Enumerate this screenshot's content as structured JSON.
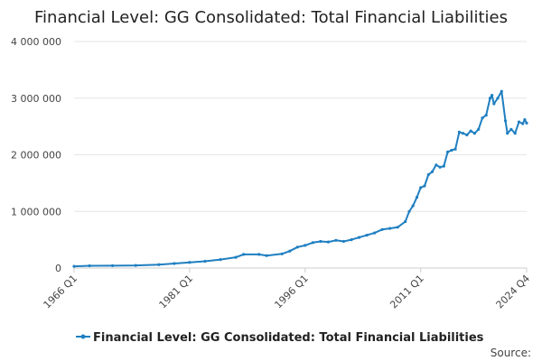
{
  "chart_data": {
    "type": "line",
    "title": "Financial Level: GG Consolidated: Total Financial Liabilities",
    "xlabel": "",
    "ylabel": "",
    "x_range": [
      "1966 Q1",
      "2024 Q4"
    ],
    "x_tick_labels": [
      "1966 Q1",
      "1981 Q1",
      "1996 Q1",
      "2011 Q1",
      "2024 Q4"
    ],
    "ylim": [
      0,
      4000000
    ],
    "y_tick_values": [
      0,
      1000000,
      2000000,
      3000000,
      4000000
    ],
    "y_tick_labels": [
      "0",
      "1 000 000",
      "2 000 000",
      "3 000 000",
      "4 000 000"
    ],
    "grid": true,
    "legend_position": "bottom",
    "series": [
      {
        "name": "Financial Level: GG Consolidated: Total Financial Liabilities",
        "color": "#1f7fc1",
        "points": [
          [
            "1966 Q1",
            30000
          ],
          [
            "1968 Q1",
            40000
          ],
          [
            "1971 Q1",
            42000
          ],
          [
            "1974 Q1",
            46000
          ],
          [
            "1977 Q1",
            60000
          ],
          [
            "1979 Q1",
            80000
          ],
          [
            "1981 Q1",
            100000
          ],
          [
            "1983 Q1",
            120000
          ],
          [
            "1985 Q1",
            150000
          ],
          [
            "1987 Q1",
            190000
          ],
          [
            "1988 Q1",
            240000
          ],
          [
            "1990 Q1",
            240000
          ],
          [
            "1991 Q1",
            220000
          ],
          [
            "1993 Q1",
            250000
          ],
          [
            "1994 Q1",
            300000
          ],
          [
            "1995 Q1",
            370000
          ],
          [
            "1996 Q1",
            400000
          ],
          [
            "1997 Q1",
            450000
          ],
          [
            "1998 Q1",
            470000
          ],
          [
            "1999 Q1",
            460000
          ],
          [
            "2000 Q1",
            490000
          ],
          [
            "2001 Q1",
            470000
          ],
          [
            "2002 Q1",
            500000
          ],
          [
            "2003 Q1",
            540000
          ],
          [
            "2004 Q1",
            580000
          ],
          [
            "2005 Q1",
            620000
          ],
          [
            "2006 Q1",
            680000
          ],
          [
            "2007 Q1",
            700000
          ],
          [
            "2008 Q1",
            720000
          ],
          [
            "2009 Q1",
            820000
          ],
          [
            "2009 Q3",
            1000000
          ],
          [
            "2010 Q1",
            1100000
          ],
          [
            "2010 Q3",
            1250000
          ],
          [
            "2011 Q1",
            1420000
          ],
          [
            "2011 Q3",
            1450000
          ],
          [
            "2012 Q1",
            1650000
          ],
          [
            "2012 Q3",
            1700000
          ],
          [
            "2013 Q1",
            1820000
          ],
          [
            "2013 Q3",
            1780000
          ],
          [
            "2014 Q1",
            1800000
          ],
          [
            "2014 Q3",
            2050000
          ],
          [
            "2015 Q1",
            2080000
          ],
          [
            "2015 Q3",
            2100000
          ],
          [
            "2016 Q1",
            2400000
          ],
          [
            "2016 Q3",
            2380000
          ],
          [
            "2017 Q1",
            2350000
          ],
          [
            "2017 Q3",
            2420000
          ],
          [
            "2018 Q1",
            2380000
          ],
          [
            "2018 Q3",
            2450000
          ],
          [
            "2019 Q1",
            2650000
          ],
          [
            "2019 Q3",
            2700000
          ],
          [
            "2020 Q1",
            3000000
          ],
          [
            "2020 Q2",
            3050000
          ],
          [
            "2020 Q3",
            2900000
          ],
          [
            "2021 Q1",
            3000000
          ],
          [
            "2021 Q3",
            3120000
          ],
          [
            "2022 Q1",
            2600000
          ],
          [
            "2022 Q2",
            2380000
          ],
          [
            "2022 Q4",
            2450000
          ],
          [
            "2023 Q2",
            2380000
          ],
          [
            "2023 Q4",
            2580000
          ],
          [
            "2024 Q2",
            2550000
          ],
          [
            "2024 Q3",
            2620000
          ],
          [
            "2024 Q4",
            2560000
          ]
        ]
      }
    ],
    "source_label": "Source:"
  }
}
